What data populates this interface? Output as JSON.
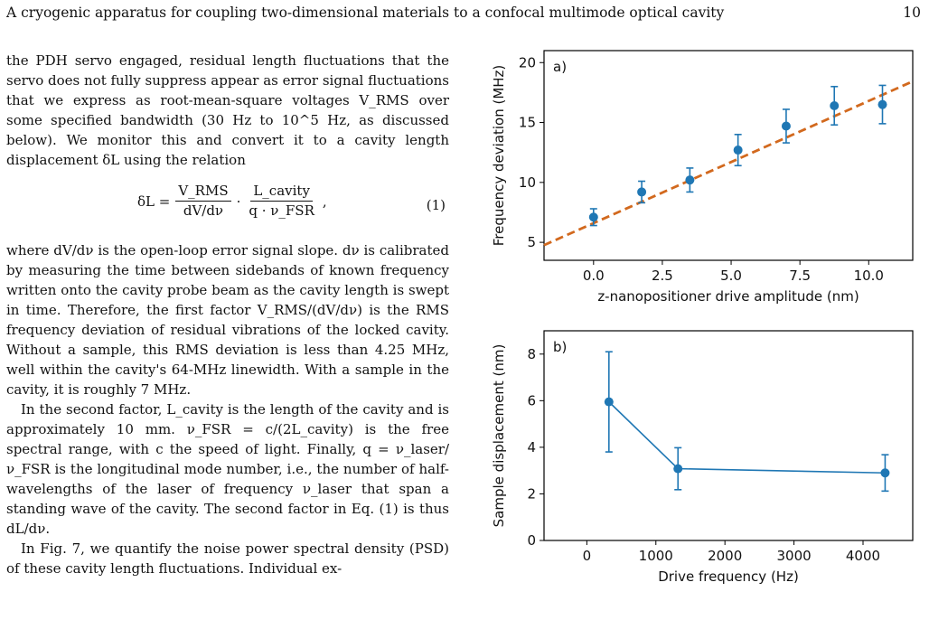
{
  "header": {
    "title": "A cryogenic apparatus for coupling two-dimensional materials to a confocal multimode optical cavity",
    "page_number": "10"
  },
  "body": {
    "para1": "the PDH servo engaged, residual length fluctuations that the servo does not fully suppress appear as error signal fluctuations that we express as root-mean-square voltages V_RMS over some specified bandwidth (30 Hz to 10^5 Hz, as discussed below). We monitor this and convert it to a cavity length displacement δL using the relation",
    "equation": {
      "lhs": "δL =",
      "f1_num": "V_RMS",
      "f1_den": "dV/dν",
      "dot": "·",
      "f2_num": "L_cavity",
      "f2_den": "q · ν_FSR",
      "tail": ",",
      "number": "(1)"
    },
    "para2": "where dV/dν is the open-loop error signal slope. dν is calibrated by measuring the time between sidebands of known frequency written onto the cavity probe beam as the cavity length is swept in time. Therefore, the first factor V_RMS/(dV/dν) is the RMS frequency deviation of residual vibrations of the locked cavity. Without a sample, this RMS deviation is less than 4.25 MHz, well within the cavity's 64-MHz linewidth. With a sample in the cavity, it is roughly 7 MHz.",
    "para3": "In the second factor, L_cavity is the length of the cavity and is approximately 10 mm. ν_FSR = c/(2L_cavity) is the free spectral range, with c the speed of light. Finally, q = ν_laser/ν_FSR is the longitudinal mode number, i.e., the number of half-wavelengths of the laser of frequency ν_laser that span a standing wave of the cavity. The second factor in Eq. (1) is thus dL/dν.",
    "para4": "In Fig. 7, we quantify the noise power spectral density (PSD) of these cavity length fluctuations. Individual ex-"
  },
  "chart_data": [
    {
      "type": "scatter",
      "panel_label": "a)",
      "xlabel": "z-nanopositioner drive amplitude (nm)",
      "ylabel": "Frequency deviation (MHz)",
      "xlim": [
        -1.8,
        11.6
      ],
      "ylim": [
        3.5,
        21
      ],
      "xticks": [
        0.0,
        2.5,
        5.0,
        7.5,
        10.0
      ],
      "xtick_labels": [
        "0.0",
        "2.5",
        "5.0",
        "7.5",
        "10.0"
      ],
      "yticks": [
        5,
        10,
        15,
        20
      ],
      "ytick_labels": [
        "5",
        "10",
        "15",
        "20"
      ],
      "x": [
        0.0,
        1.75,
        3.5,
        5.25,
        7.0,
        8.75,
        10.5
      ],
      "y": [
        7.1,
        9.2,
        10.2,
        12.7,
        14.7,
        16.4,
        16.5
      ],
      "yerr": [
        0.7,
        0.9,
        1.0,
        1.3,
        1.4,
        1.6,
        1.6
      ],
      "fit": {
        "slope": 1.02,
        "intercept": 6.6,
        "style": "dashed"
      },
      "colors": {
        "points": "#1f77b4",
        "fit": "#d2691e"
      }
    },
    {
      "type": "line",
      "panel_label": "b)",
      "xlabel": "Drive frequency (Hz)",
      "ylabel": "Sample displacement (nm)",
      "xlim": [
        -620,
        4720
      ],
      "ylim": [
        0,
        9
      ],
      "xticks": [
        0,
        1000,
        2000,
        3000,
        4000
      ],
      "xtick_labels": [
        "0",
        "1000",
        "2000",
        "3000",
        "4000"
      ],
      "yticks": [
        0,
        2,
        4,
        6,
        8
      ],
      "ytick_labels": [
        "0",
        "2",
        "4",
        "6",
        "8"
      ],
      "x": [
        320,
        1320,
        4320
      ],
      "y": [
        5.95,
        3.08,
        2.9
      ],
      "yerr_low": [
        2.15,
        0.9,
        0.78
      ],
      "yerr_high": [
        2.15,
        0.9,
        0.78
      ],
      "colors": {
        "points": "#1f77b4"
      }
    }
  ]
}
